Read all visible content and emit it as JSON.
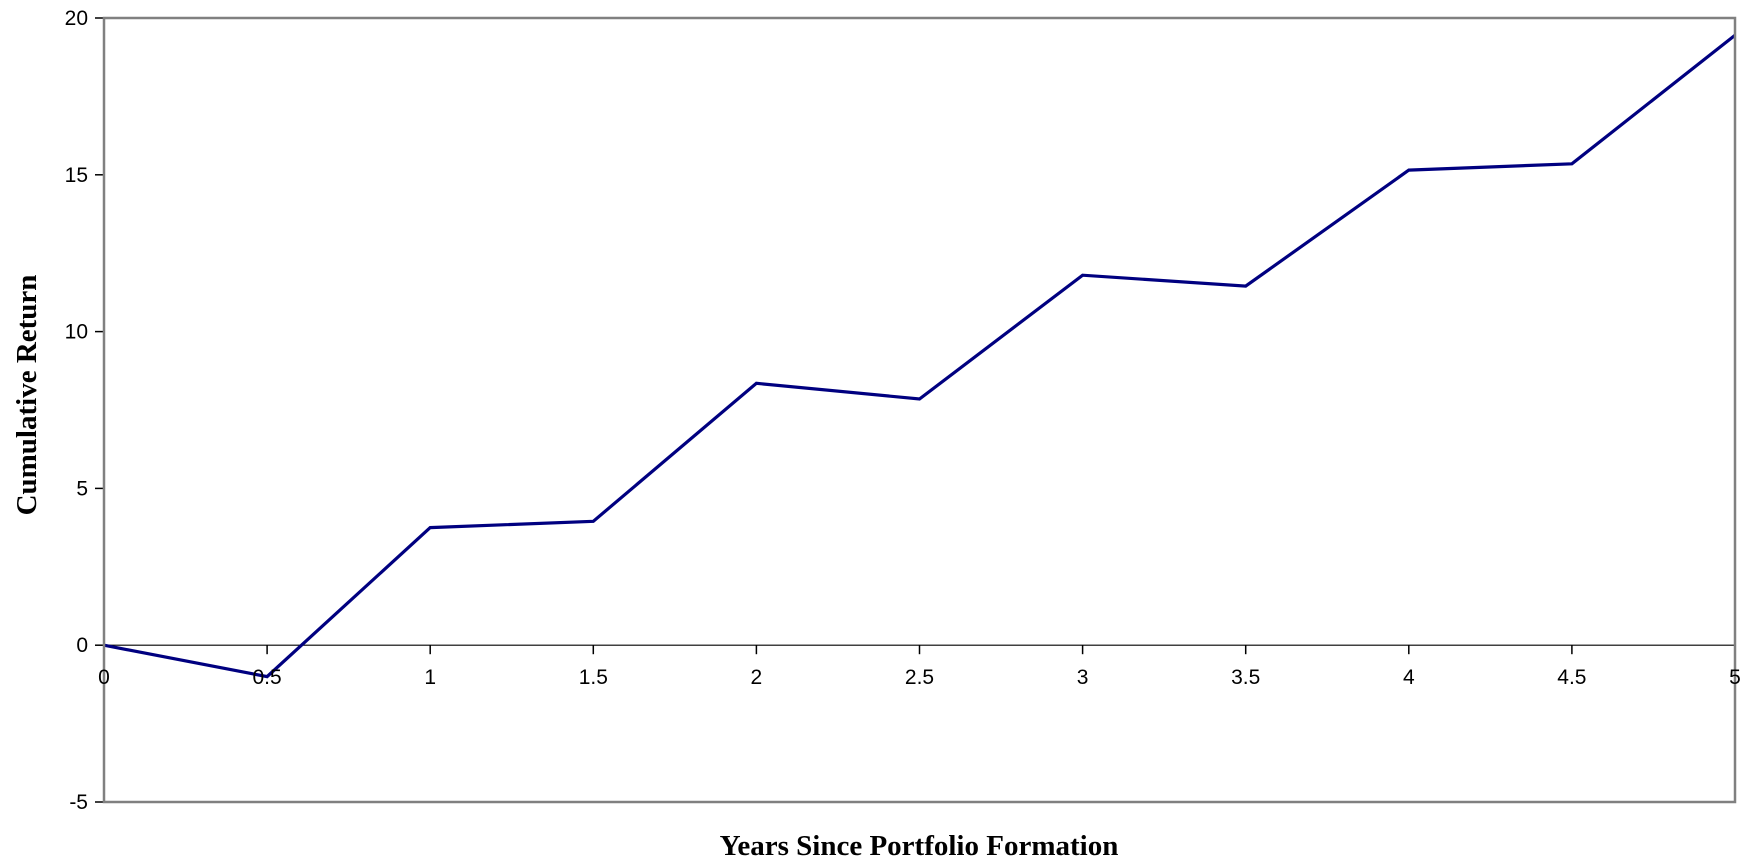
{
  "chart_data": {
    "type": "line",
    "title": "",
    "xlabel": "Years Since Portfolio Formation",
    "ylabel": "Cumulative Return",
    "xlim": [
      0,
      5
    ],
    "ylim": [
      -5,
      20
    ],
    "x_ticks": [
      "0",
      "0.5",
      "1",
      "1.5",
      "2",
      "2.5",
      "3",
      "3.5",
      "4",
      "4.5",
      "5"
    ],
    "y_ticks": [
      "-5",
      "0",
      "5",
      "10",
      "15",
      "20"
    ],
    "grid": false,
    "legend": "none",
    "series": [
      {
        "color": "#000080",
        "x": [
          0,
          0.5,
          1,
          1.5,
          2,
          2.5,
          3,
          3.5,
          4,
          4.5,
          5
        ],
        "values": [
          0,
          -1,
          3.75,
          3.95,
          8.35,
          7.85,
          11.8,
          11.45,
          15.15,
          15.35,
          19.45
        ]
      }
    ]
  }
}
